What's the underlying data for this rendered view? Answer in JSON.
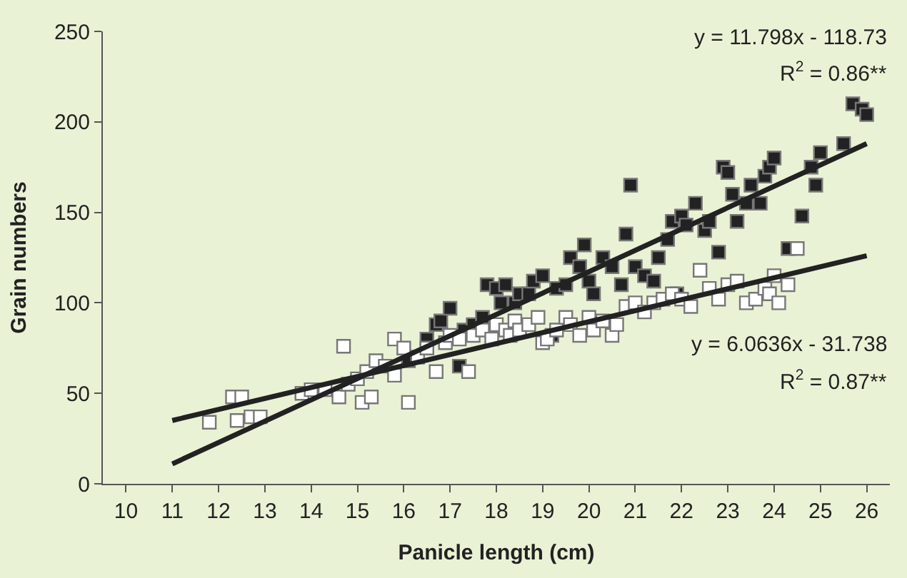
{
  "chart_data": {
    "type": "scatter",
    "xlabel": "Panicle length (cm)",
    "ylabel": "Grain numbers",
    "xlim": [
      9.5,
      26.5
    ],
    "xticks": [
      10,
      11,
      12,
      13,
      14,
      15,
      16,
      17,
      18,
      19,
      20,
      21,
      22,
      23,
      24,
      25,
      26
    ],
    "ylim": [
      0,
      250
    ],
    "yticks": [
      0,
      50,
      100,
      150,
      200,
      250
    ],
    "grid": false,
    "marker": "square",
    "annotations": [
      "y = 11.798x - 118.73",
      "R$^{2}$ = 0.86**",
      "y = 6.0636x - 31.738",
      "R$^{2}$ = 0.87**"
    ],
    "series": [
      {
        "color": "#222222",
        "x": [
          16.1,
          16.5,
          16.7,
          16.8,
          17.0,
          17.2,
          17.3,
          17.5,
          17.7,
          17.8,
          18.0,
          18.1,
          18.2,
          18.4,
          18.5,
          18.7,
          18.8,
          19.0,
          19.2,
          19.3,
          19.5,
          19.6,
          19.8,
          19.9,
          20.0,
          20.1,
          20.3,
          20.5,
          20.7,
          20.8,
          20.9,
          21.0,
          21.2,
          21.4,
          21.5,
          21.7,
          21.8,
          21.9,
          22.0,
          22.1,
          22.3,
          22.5,
          22.6,
          22.8,
          22.9,
          23.0,
          23.1,
          23.2,
          23.4,
          23.5,
          23.7,
          23.8,
          23.9,
          24.0,
          24.3,
          24.6,
          24.8,
          24.9,
          25.0,
          25.5,
          25.7,
          25.9,
          26.0
        ],
        "values": [
          68,
          80,
          88,
          90,
          97,
          65,
          85,
          88,
          92,
          110,
          108,
          100,
          110,
          100,
          105,
          105,
          112,
          115,
          82,
          108,
          110,
          125,
          120,
          132,
          112,
          105,
          125,
          120,
          110,
          138,
          165,
          120,
          115,
          112,
          125,
          135,
          145,
          105,
          148,
          143,
          155,
          140,
          145,
          128,
          175,
          172,
          160,
          145,
          155,
          165,
          155,
          170,
          175,
          180,
          130,
          148,
          175,
          165,
          183,
          188,
          210,
          207,
          204
        ]
      },
      {
        "color": "#ffffff",
        "x": [
          11.8,
          12.3,
          12.4,
          12.5,
          12.7,
          12.9,
          13.8,
          14.0,
          14.3,
          14.6,
          14.7,
          14.8,
          15.0,
          15.1,
          15.2,
          15.3,
          15.4,
          15.6,
          15.8,
          15.8,
          16.0,
          16.1,
          16.3,
          16.5,
          16.7,
          16.9,
          17.0,
          17.2,
          17.4,
          17.5,
          17.7,
          17.9,
          18.0,
          18.2,
          18.3,
          18.4,
          18.5,
          18.7,
          18.9,
          19.0,
          19.1,
          19.3,
          19.5,
          19.6,
          19.8,
          20.0,
          20.1,
          20.3,
          20.5,
          20.6,
          20.8,
          21.0,
          21.2,
          21.4,
          21.6,
          21.8,
          22.0,
          22.2,
          22.4,
          22.6,
          22.8,
          23.0,
          23.2,
          23.4,
          23.6,
          23.8,
          23.9,
          24.0,
          24.1,
          24.3,
          24.5
        ],
        "values": [
          34,
          48,
          35,
          48,
          37,
          37,
          50,
          52,
          52,
          48,
          76,
          55,
          58,
          45,
          62,
          48,
          68,
          65,
          60,
          80,
          75,
          45,
          70,
          75,
          62,
          78,
          82,
          80,
          62,
          82,
          85,
          80,
          88,
          85,
          82,
          90,
          85,
          88,
          92,
          78,
          80,
          85,
          92,
          88,
          82,
          92,
          85,
          90,
          82,
          88,
          98,
          100,
          95,
          100,
          102,
          105,
          102,
          98,
          118,
          108,
          102,
          110,
          112,
          100,
          102,
          108,
          105,
          115,
          100,
          110,
          130
        ]
      },
      {
        "type": "line",
        "marker": "none",
        "color": "#222222",
        "x": [
          11,
          26
        ],
        "values": [
          11,
          188
        ]
      },
      {
        "type": "line",
        "marker": "none",
        "color": "#222222",
        "x": [
          11,
          26
        ],
        "values": [
          35,
          126
        ]
      }
    ]
  }
}
